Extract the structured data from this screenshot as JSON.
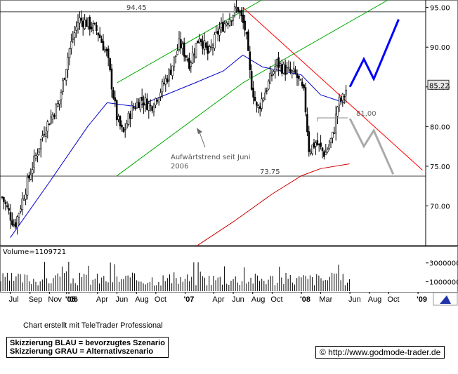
{
  "chart_data": {
    "type": "candlestick",
    "price_axis": {
      "ticks": [
        "95.00",
        "90.00",
        "85.00",
        "80.00",
        "75.00",
        "70.00"
      ],
      "tick_values": [
        95,
        90,
        85,
        80,
        75,
        70
      ],
      "ylim": [
        65,
        95.5
      ],
      "current_price_label": "85.22",
      "current_price": 85.22
    },
    "x_axis_labels": [
      {
        "label": "'05",
        "date": "2005-12-25",
        "bold": true
      },
      {
        "label": "Jul",
        "date": "2005-07-01",
        "bold": false
      },
      {
        "label": "Sep",
        "date": "2005-09-01",
        "bold": false
      },
      {
        "label": "Nov",
        "date": "2005-11-01",
        "bold": false
      },
      {
        "label": "'06",
        "date": "2006-01-01",
        "bold": true
      },
      {
        "label": "Apr",
        "date": "2006-04-01",
        "bold": false
      },
      {
        "label": "Jun",
        "date": "2006-06-01",
        "bold": false
      },
      {
        "label": "Aug",
        "date": "2006-08-01",
        "bold": false
      },
      {
        "label": "Oct",
        "date": "2006-10-01",
        "bold": false
      },
      {
        "label": "'07",
        "date": "2007-01-01",
        "bold": true
      },
      {
        "label": "Apr",
        "date": "2007-04-01",
        "bold": false
      },
      {
        "label": "Jun",
        "date": "2007-06-01",
        "bold": false
      },
      {
        "label": "Aug",
        "date": "2007-08-01",
        "bold": false
      },
      {
        "label": "Oct",
        "date": "2007-10-01",
        "bold": false
      },
      {
        "label": "'08",
        "date": "2008-01-01",
        "bold": true
      },
      {
        "label": "Mar",
        "date": "2008-03-01",
        "bold": false
      },
      {
        "label": "Jun",
        "date": "2008-06-01",
        "bold": false
      },
      {
        "label": "Aug",
        "date": "2008-08-01",
        "bold": false
      },
      {
        "label": "Oct",
        "date": "2008-10-01",
        "bold": false
      },
      {
        "label": "'09",
        "date": "2009-01-01",
        "bold": true
      }
    ],
    "horizontal_levels": [
      {
        "label": "94.45",
        "value": 94.45
      },
      {
        "label": "73.75",
        "value": 73.75
      }
    ],
    "annotations": [
      {
        "text": "Aufwärtstrend seit Juni",
        "line2": "2006"
      },
      {
        "text": "81,00",
        "value": 81.0
      }
    ],
    "ohlc_x": [
      "2005-06-01",
      "2005-07-15",
      "2005-09-01",
      "2005-10-15",
      "2005-12-01",
      "2006-01-01",
      "2006-02-01",
      "2006-03-01",
      "2006-04-01",
      "2006-05-01",
      "2006-06-01",
      "2006-06-20",
      "2006-07-15",
      "2006-08-15",
      "2006-09-15",
      "2006-10-15",
      "2006-11-15",
      "2006-12-15",
      "2007-01-15",
      "2007-02-15",
      "2007-03-15",
      "2007-04-15",
      "2007-05-15",
      "2007-06-15",
      "2007-07-10",
      "2007-07-25",
      "2007-08-15",
      "2007-09-15",
      "2007-10-15",
      "2007-11-15",
      "2007-12-15",
      "2008-01-10",
      "2008-01-25",
      "2008-02-15",
      "2008-03-15",
      "2008-04-10",
      "2008-04-25",
      "2008-05-10",
      "2008-05-25"
    ],
    "close_approx": [
      71.5,
      67.5,
      74.0,
      79.5,
      83.0,
      89.5,
      93.5,
      93.0,
      92.0,
      89.0,
      81.0,
      79.0,
      82.0,
      83.5,
      82.5,
      84.5,
      87.0,
      90.5,
      88.0,
      91.5,
      89.0,
      92.0,
      93.5,
      95.0,
      92.0,
      86.0,
      82.0,
      85.0,
      88.0,
      87.0,
      86.5,
      84.0,
      77.0,
      78.0,
      76.5,
      79.0,
      83.0,
      83.5,
      85.22
    ],
    "moving_averages": [
      {
        "color": "#0000cc",
        "x": [
          "2005-07-01",
          "2005-11-01",
          "2006-03-01",
          "2006-05-01",
          "2006-08-01",
          "2006-11-01",
          "2007-02-01",
          "2007-05-01",
          "2007-07-01",
          "2007-09-01",
          "2007-11-01",
          "2008-01-01",
          "2008-03-01",
          "2008-05-15"
        ],
        "y": [
          66.0,
          73.0,
          80.0,
          83.0,
          82.5,
          84.0,
          85.5,
          87.0,
          89.0,
          87.5,
          87.0,
          86.5,
          84.0,
          83.0
        ]
      },
      {
        "color": "#cc0000",
        "x": [
          "2007-01-01",
          "2007-06-01",
          "2007-10-01",
          "2008-01-01",
          "2008-03-01",
          "2008-05-31"
        ],
        "y": [
          64.0,
          68.0,
          71.5,
          73.8,
          74.7,
          75.3
        ]
      }
    ],
    "trend_lines": [
      {
        "color": "#00aa00",
        "x": [
          "2006-06-01",
          "2007-07-01"
        ],
        "y": [
          73.8,
          85.5
        ]
      },
      {
        "color": "#00aa00",
        "x": [
          "2006-06-01",
          "2007-09-01"
        ],
        "y": [
          85.5,
          96.0
        ]
      },
      {
        "color": "#00aa00",
        "x": [
          "2007-07-01",
          "2008-10-01"
        ],
        "y": [
          85.5,
          96.0
        ]
      },
      {
        "color": "#ff0000",
        "x": [
          "2007-07-01",
          "2009-01-15"
        ],
        "y": [
          95.0,
          74.5
        ]
      }
    ],
    "scenarios": [
      {
        "name": "bevorzugtes Szenario",
        "color": "#0000ff",
        "x": [
          "2008-06-01",
          "2008-07-15",
          "2008-08-15",
          "2008-11-01"
        ],
        "y": [
          85.0,
          88.5,
          86.0,
          93.5
        ]
      },
      {
        "name": "Alternativszenario",
        "color": "#aaaaaa",
        "x": [
          "2008-06-01",
          "2008-07-15",
          "2008-08-15",
          "2008-10-15"
        ],
        "y": [
          81.0,
          77.5,
          79.5,
          74.0
        ]
      }
    ],
    "volume": {
      "label": "Volume=1109721",
      "ticks": [
        "3000000",
        "1000000"
      ],
      "tick_values": [
        3000000,
        1000000
      ],
      "ylim": [
        0,
        3800000
      ],
      "x_range": [
        "2005-06-01",
        "2008-05-31"
      ],
      "bar_count": 160
    }
  },
  "footer": {
    "credit": "Chart erstellt mit TeleTrader Professional",
    "legend_blue": "Skizzierung BLAU = bevorzugtes Szenario",
    "legend_grey": "Skizzierung GRAU = Alternativszenario",
    "url": "© http://www.godmode-trader.de"
  }
}
